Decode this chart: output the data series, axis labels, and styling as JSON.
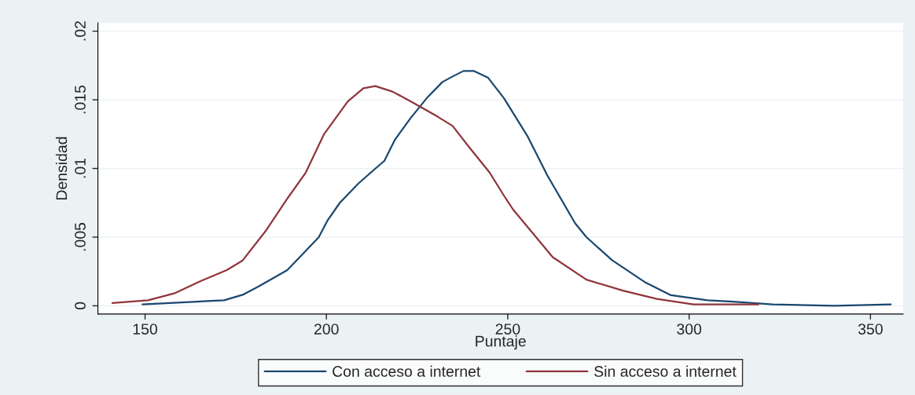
{
  "chart_data": {
    "type": "line",
    "xlabel": "Puntaje",
    "ylabel": "Densidad",
    "xlim": [
      137,
      359
    ],
    "ylim": [
      -0.0006,
      0.0206
    ],
    "xticks": [
      150,
      200,
      250,
      300,
      350
    ],
    "yticks": [
      {
        "value": 0,
        "label": "0"
      },
      {
        "value": 0.005,
        "label": ".005"
      },
      {
        "value": 0.01,
        "label": ".01"
      },
      {
        "value": 0.015,
        "label": ".015"
      },
      {
        "value": 0.02,
        "label": ".02"
      }
    ],
    "grid": "y",
    "legend": "bottom",
    "line_style": "solid",
    "marker": "none",
    "series": [
      {
        "name": "Con acceso a internet",
        "color": "#1a476f",
        "x": [
          149.3,
          171.8,
          176.9,
          181.2,
          189.2,
          194.3,
          197.9,
          200.4,
          203.7,
          208.8,
          213.1,
          216.0,
          218.9,
          223.3,
          227.6,
          232.0,
          234.8,
          237.8,
          240.7,
          244.6,
          249.0,
          255.4,
          260.9,
          268.6,
          271.7,
          278.7,
          288.0,
          295.0,
          305.1,
          312.1,
          323.0,
          340.0,
          355.6
        ],
        "values": [
          0.0001,
          0.0004,
          0.0008,
          0.0014,
          0.0026,
          0.004,
          0.005,
          0.00625,
          0.0075,
          0.0089,
          0.0099,
          0.01056,
          0.0121,
          0.0137,
          0.0151,
          0.0163,
          0.0167,
          0.0171,
          0.0171,
          0.0166,
          0.0151,
          0.01237,
          0.0095,
          0.006,
          0.005,
          0.00333,
          0.00169,
          0.00077,
          0.0004,
          0.0003,
          0.0001,
          0.0,
          0.0001
        ]
      },
      {
        "name": "Sin acceso a internet",
        "color": "#90353b",
        "x": [
          141.0,
          150.8,
          158.0,
          165.3,
          172.5,
          176.9,
          183.4,
          189.2,
          194.3,
          199.3,
          205.9,
          210.2,
          213.5,
          218.2,
          223.3,
          230.5,
          234.8,
          239.2,
          245.0,
          249.0,
          251.5,
          262.4,
          271.7,
          281.8,
          291.1,
          301.2,
          319.1
        ],
        "values": [
          0.0002,
          0.0004,
          0.0009,
          0.0018,
          0.0026,
          0.0033,
          0.0055,
          0.0078,
          0.0097,
          0.01248,
          0.01488,
          0.01584,
          0.016,
          0.0156,
          0.01488,
          0.0138,
          0.0131,
          0.0116,
          0.0097,
          0.008,
          0.007,
          0.00354,
          0.0019,
          0.0011,
          0.0005,
          0.0001,
          0.0001
        ]
      }
    ]
  }
}
